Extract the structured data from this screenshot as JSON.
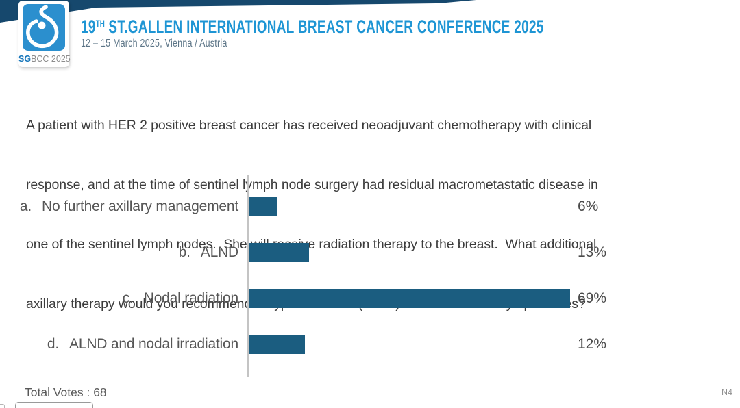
{
  "header": {
    "logo": {
      "caption_bold": "SG",
      "caption_rest": "BCC 2025",
      "square_color": "#2b8fce"
    },
    "title_num": "19",
    "title_sup": "TH",
    "title_rest": " ST.GALLEN INTERNATIONAL BREAST CANCER CONFERENCE 2025",
    "subtitle": "12 – 15 March 2025, Vienna / Austria",
    "title_color": "#1e95d4",
    "wedge_color": "#16486d"
  },
  "question": {
    "lines": [
      "A patient with HER 2 positive breast cancer has received neoadjuvant chemotherapy with clinical",
      "response, and at the time of sentinel lymph node surgery had residual macrometastatic disease in",
      "one of the sentinel lymph nodes.  She will receive radiation therapy to the breast.  What additional",
      "axillary therapy would you recommend for ypN1 disease (3 mm) in 1 of 4 sentinel lymph nodes?"
    ]
  },
  "chart_data": {
    "type": "bar",
    "orientation": "horizontal",
    "option_letters": [
      "a.",
      "b.",
      "c.",
      "d."
    ],
    "categories": [
      "No further axillary management",
      "ALND",
      "Nodal radiation",
      "ALND and nodal irradiation"
    ],
    "values": [
      6,
      13,
      69,
      12
    ],
    "value_labels": [
      "6%",
      "13%",
      "69%",
      "12%"
    ],
    "xlim": [
      0,
      100
    ],
    "grid": false,
    "value_label_position": "right",
    "bar_color": "#1b5d80",
    "total_votes": 68
  },
  "footer": {
    "total_votes_text": "Total Votes : 68",
    "slide_code": "N4"
  }
}
